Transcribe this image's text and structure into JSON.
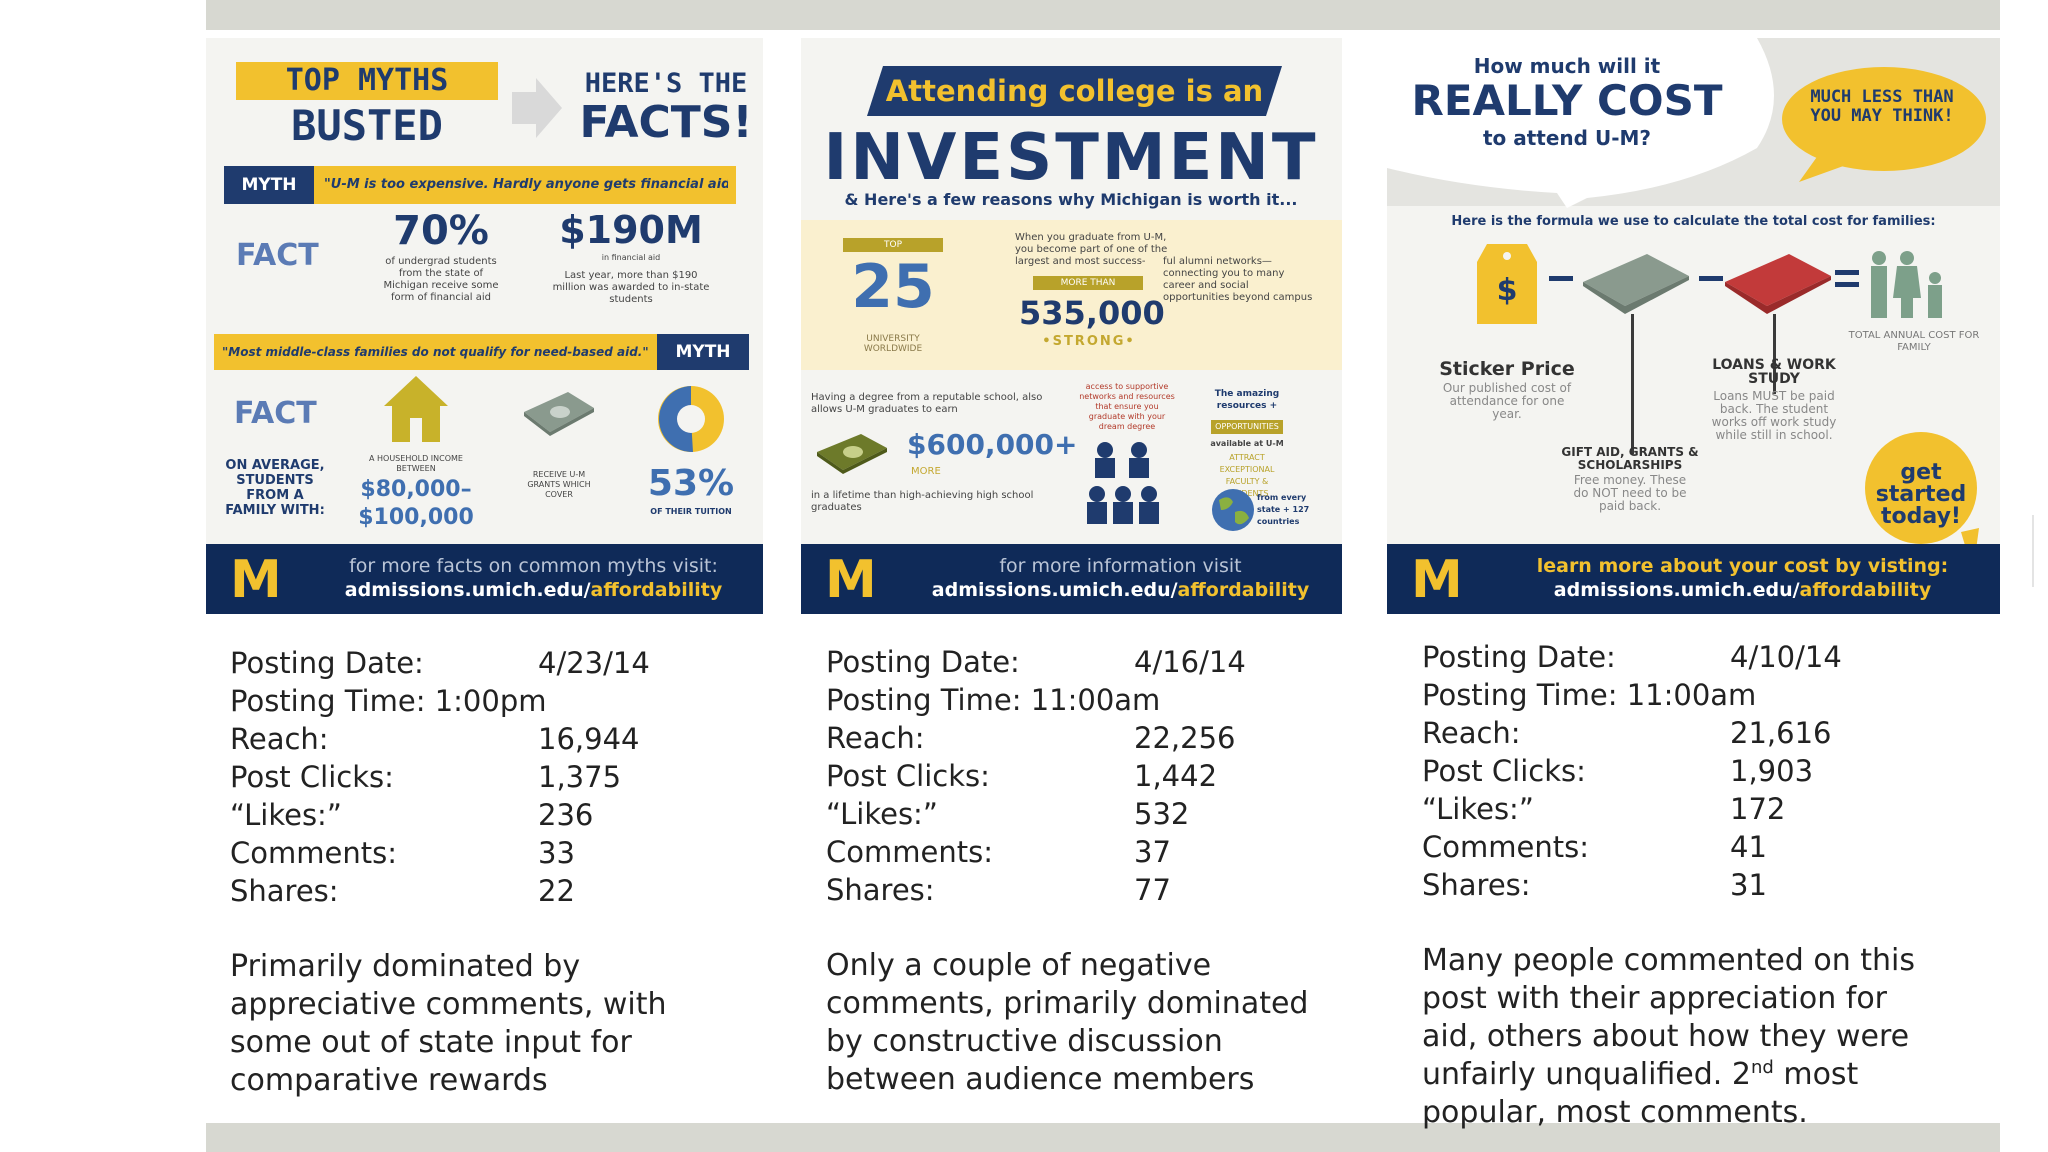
{
  "cards": [
    {
      "title_left_1": "TOP MYTHS",
      "title_left_2": "BUSTED",
      "title_right_1": "HERE'S THE",
      "title_right_2": "FACTS!",
      "myth1_label": "MYTH",
      "myth1_text": "\"U-M is too expensive. Hardly anyone gets financial aid\"",
      "fact_label": "FACT",
      "stat1_value": "70%",
      "stat1_text": "of undergrad students from the state of Michigan receive some form of financial aid",
      "stat2_value": "$190M",
      "stat2_sub": "in financial aid",
      "stat2_text": "Last year, more than $190 million was awarded to in-state students",
      "myth2_text": "\"Most middle-class families do not qualify for need-based aid.\"",
      "myth2_label": "MYTH",
      "fact2_label": "FACT",
      "avg_text": "ON AVERAGE, STUDENTS FROM A FAMILY WITH:",
      "income_label": "A HOUSEHOLD INCOME BETWEEN",
      "income_value": "$80,000–$100,000",
      "grants_text": "RECEIVE U-M GRANTS WHICH COVER",
      "pct_value": "53%",
      "pct_text": "OF THEIR TUITION",
      "footer_text": "for more facts on common myths visit:",
      "footer_url": "admissions.umich.edu/",
      "footer_url_hl": "affordability",
      "logo": "M"
    },
    {
      "banner": "Attending college is an",
      "title": "INVESTMENT",
      "subtitle": "& Here's a few reasons why Michigan is worth it...",
      "top_label": "TOP",
      "top_value": "25",
      "top_text": "UNIVERSITY WORLDWIDE",
      "alumni_text_1": "When you graduate from U-M, you become part of one of the largest and most success-",
      "more_than": "MORE THAN",
      "alumni_value": "535,000",
      "strong": "•STRONG•",
      "alumni_text_2": "ful alumni networks— connecting you to many career and social opportunities beyond campus",
      "degree_text": "Having a degree from a reputable school, also allows U-M graduates to earn",
      "money_value": "$600,000+",
      "money_more": "MORE",
      "money_text": "in a lifetime than high-achieving high school graduates",
      "access_text": "access to supportive networks and resources that ensure you graduate with your dream degree",
      "resources_text": "The amazing resources +",
      "opps": "OPPORTUNITIES",
      "avail": "available at U-M",
      "attract": "ATTRACT EXCEPTIONAL FACULTY & STUDENTS",
      "states": "from every state + 127 countries",
      "footer_text": "for more information visit",
      "footer_url": "admissions.umich.edu/",
      "footer_url_hl": "affordability",
      "logo": "M"
    },
    {
      "q1": "How much will it",
      "q2": "REALLY COST",
      "q3": "to attend U-M?",
      "bubble": "MUCH LESS THAN YOU MAY THINK!",
      "formula": "Here is the formula we use to calculate the total cost for families:",
      "sticker_title": "Sticker Price",
      "sticker_text": "Our published cost of attendance for one year.",
      "gift_title": "GIFT AID, GRANTS & SCHOLARSHIPS",
      "gift_text": "Free money. These do NOT need to be paid back.",
      "loans_title": "LOANS & WORK STUDY",
      "loans_text": "Loans MUST be paid back. The student works off work study while still in school.",
      "total_text": "TOTAL ANNUAL COST FOR FAMILY",
      "started": "get started today!",
      "footer_text": "learn more about your cost by visting:",
      "footer_url": "admissions.umich.edu/",
      "footer_url_hl": "affordability",
      "logo": "M"
    }
  ],
  "posts": [
    {
      "date_label": "Posting Date:",
      "date": "4/23/14",
      "time_label": "Posting Time: 1:00pm",
      "reach_label": "Reach:",
      "reach": "16,944",
      "clicks_label": "Post Clicks:",
      "clicks": "1,375",
      "likes_label": "“Likes:”",
      "likes": "236",
      "comments_label": "Comments:",
      "comments": "33",
      "shares_label": "Shares:",
      "shares": "22",
      "summary_1": "Primarily dominated by",
      "summary_2": "appreciative comments, with",
      "summary_3": "some out of state input for",
      "summary_4": "comparative rewards"
    },
    {
      "date_label": "Posting Date:",
      "date": "4/16/14",
      "time_label": "Posting Time: 11:00am",
      "reach_label": "Reach:",
      "reach": "22,256",
      "clicks_label": "Post Clicks:",
      "clicks": "1,442",
      "likes_label": "“Likes:”",
      "likes": "532",
      "comments_label": "Comments:",
      "comments": "37",
      "shares_label": "Shares:",
      "shares": "77",
      "summary_1": "Only a couple of negative",
      "summary_2": "comments, primarily dominated",
      "summary_3": "by constructive discussion",
      "summary_4": "between audience members"
    },
    {
      "date_label": "Posting Date:",
      "date": "4/10/14",
      "time_label": "Posting Time: 11:00am",
      "reach_label": "Reach:",
      "reach": "21,616",
      "clicks_label": "Post Clicks:",
      "clicks": "1,903",
      "likes_label": "“Likes:”",
      "likes": "172",
      "comments_label": "Comments:",
      "comments": "41",
      "shares_label": "Shares:",
      "shares": "31",
      "summary_1": "Many people commented on this",
      "summary_2": "post with their appreciation for",
      "summary_3": "aid, others about how they were",
      "summary_4a": "unfairly unqualified. 2",
      "summary_4sup": "nd",
      "summary_4b": " most",
      "summary_5": "popular,  most comments."
    }
  ],
  "colors": {
    "navy": "#1f3b6e",
    "maize": "#f2c12e",
    "footer": "#0f2a58"
  }
}
